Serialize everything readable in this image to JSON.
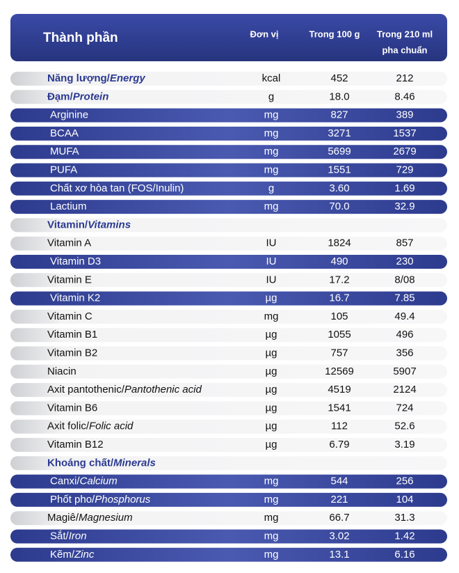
{
  "header": {
    "columns": [
      "Thành phần",
      "Đơn vị",
      "Trong 100 g",
      [
        "Trong 210 ml",
        "pha chuẩn"
      ]
    ]
  },
  "table": {
    "rows": [
      {
        "name": "Năng lượng/",
        "name_en": "Energy",
        "unit": "kcal",
        "v100": "452",
        "v210": "212",
        "color": "light",
        "bold": true
      },
      {
        "name": "Đạm/",
        "name_en": "Protein",
        "unit": "g",
        "v100": "18.0",
        "v210": "8.46",
        "color": "light",
        "bold": true
      },
      {
        "name": "Arginine",
        "unit": "mg",
        "v100": "827",
        "v210": "389",
        "color": "blue"
      },
      {
        "name": "BCAA",
        "unit": "mg",
        "v100": "3271",
        "v210": "1537",
        "color": "blue"
      },
      {
        "name": "MUFA",
        "unit": "mg",
        "v100": "5699",
        "v210": "2679",
        "color": "blue"
      },
      {
        "name": "PUFA",
        "unit": "mg",
        "v100": "1551",
        "v210": "729",
        "color": "blue"
      },
      {
        "name": "Chất xơ hòa tan (FOS/Inulin)",
        "unit": "g",
        "v100": "3.60",
        "v210": "1.69",
        "color": "blue"
      },
      {
        "name": "Lactium",
        "unit": "mg",
        "v100": "70.0",
        "v210": "32.9",
        "color": "blue"
      },
      {
        "name": "Vitamin/",
        "name_en": "Vitamins",
        "color": "light",
        "bold": true
      },
      {
        "name": "Vitamin A",
        "unit": "IU",
        "v100": "1824",
        "v210": "857",
        "color": "light"
      },
      {
        "name": "Vitamin D3",
        "unit": "IU",
        "v100": "490",
        "v210": "230",
        "color": "blue"
      },
      {
        "name": "Vitamin E",
        "unit": "IU",
        "v100": "17.2",
        "v210": "8/08",
        "color": "light"
      },
      {
        "name": "Vitamin K2",
        "unit": "µg",
        "v100": "16.7",
        "v210": "7.85",
        "color": "blue"
      },
      {
        "name": "Vitamin C",
        "unit": "mg",
        "v100": "105",
        "v210": "49.4",
        "color": "light"
      },
      {
        "name": "Vitamin B1",
        "unit": "µg",
        "v100": "1055",
        "v210": "496",
        "color": "light"
      },
      {
        "name": "Vitamin B2",
        "unit": "µg",
        "v100": "757",
        "v210": "356",
        "color": "light"
      },
      {
        "name": "Niacin",
        "unit": "µg",
        "v100": "12569",
        "v210": "5907",
        "color": "light"
      },
      {
        "name": "Axit pantothenic/",
        "name_en": "Pantothenic acid",
        "unit": "µg",
        "v100": "4519",
        "v210": "2124",
        "color": "light"
      },
      {
        "name": "Vitamin B6",
        "unit": "µg",
        "v100": "1541",
        "v210": "724",
        "color": "light"
      },
      {
        "name": "Axit folic/",
        "name_en": "Folic acid",
        "unit": "µg",
        "v100": "112",
        "v210": "52.6",
        "color": "light"
      },
      {
        "name": "Vitamin B12",
        "unit": "µg",
        "v100": "6.79",
        "v210": "3.19",
        "color": "light"
      },
      {
        "name": "Khoáng chất/",
        "name_en": "Minerals",
        "color": "light",
        "bold": true
      },
      {
        "name": "Canxi/",
        "name_en": "Calcium",
        "unit": "mg",
        "v100": "544",
        "v210": "256",
        "color": "blue"
      },
      {
        "name": "Phốt pho/",
        "name_en": "Phosphorus",
        "unit": "mg",
        "v100": "221",
        "v210": "104",
        "color": "blue"
      },
      {
        "name": "Magiê/",
        "name_en": "Magnesium",
        "unit": "mg",
        "v100": "66.7",
        "v210": "31.3",
        "color": "light"
      },
      {
        "name": "Sắt/",
        "name_en": "Iron",
        "unit": "mg",
        "v100": "3.02",
        "v210": "1.42",
        "color": "blue"
      },
      {
        "name": "Kẽm/",
        "name_en": "Zinc",
        "unit": "mg",
        "v100": "13.1",
        "v210": "6.16",
        "color": "blue"
      }
    ]
  }
}
